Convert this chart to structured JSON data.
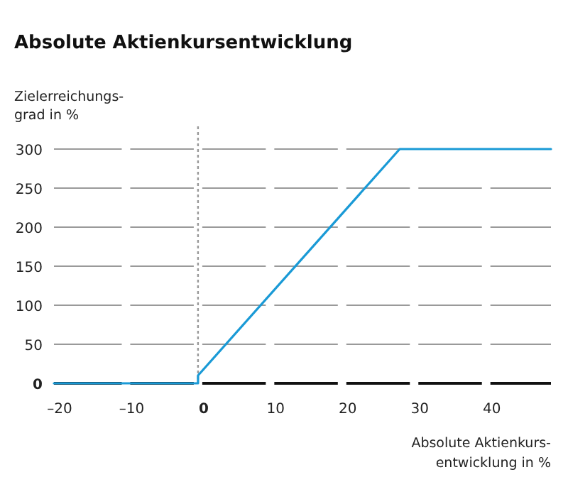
{
  "chart_data": {
    "type": "line",
    "title": "Absolute Aktienkursentwicklung",
    "xlabel": "Absolute Aktienkurs-\nentwicklung in %",
    "ylabel": "Zielerreichungs-\ngrad in %",
    "x": [
      -20,
      0,
      0,
      28,
      49
    ],
    "series": [
      {
        "color": "#1a9ad6",
        "values": [
          0,
          0,
          10,
          300,
          300
        ]
      }
    ],
    "xlim": [
      -20,
      49
    ],
    "xticks": [
      {
        "value": -20,
        "label": "–20"
      },
      {
        "value": -10,
        "label": "–10"
      },
      0,
      10,
      20,
      30,
      40
    ],
    "ylim": [
      0,
      300
    ],
    "yticks": [
      0,
      50,
      100,
      150,
      200,
      250,
      300
    ],
    "grid": "y",
    "line_style": "solid",
    "marker": "none",
    "ref_lines": [
      {
        "axis": "x",
        "value": 0,
        "color": "#999999",
        "line_style": "dotted"
      }
    ]
  }
}
